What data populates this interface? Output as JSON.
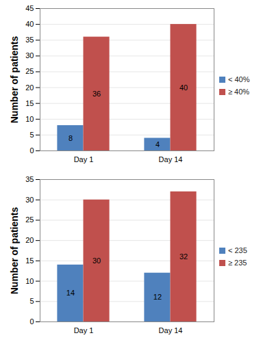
{
  "chart_data": [
    {
      "type": "bar",
      "y_label": "Number of patients",
      "categories": [
        "Day 1",
        "Day 14"
      ],
      "series": [
        {
          "name": "< 40%",
          "color": "#4f81bd",
          "values": [
            8,
            4
          ]
        },
        {
          "name": "≥ 40%",
          "color": "#c0504d",
          "values": [
            36,
            40
          ]
        }
      ],
      "ylim": [
        0,
        45
      ],
      "yticks": [
        0,
        5,
        10,
        15,
        20,
        25,
        30,
        35,
        40,
        45
      ],
      "grid": true,
      "legend": "right",
      "data_labels": true
    },
    {
      "type": "bar",
      "y_label": "Number of patients",
      "categories": [
        "Day 1",
        "Day 14"
      ],
      "series": [
        {
          "name": "< 235",
          "color": "#4f81bd",
          "values": [
            14,
            12
          ]
        },
        {
          "name": "≥ 235",
          "color": "#c0504d",
          "values": [
            30,
            32
          ]
        }
      ],
      "ylim": [
        0,
        35
      ],
      "yticks": [
        0,
        5,
        10,
        15,
        20,
        25,
        30,
        35
      ],
      "grid": true,
      "legend": "right",
      "data_labels": true
    }
  ]
}
